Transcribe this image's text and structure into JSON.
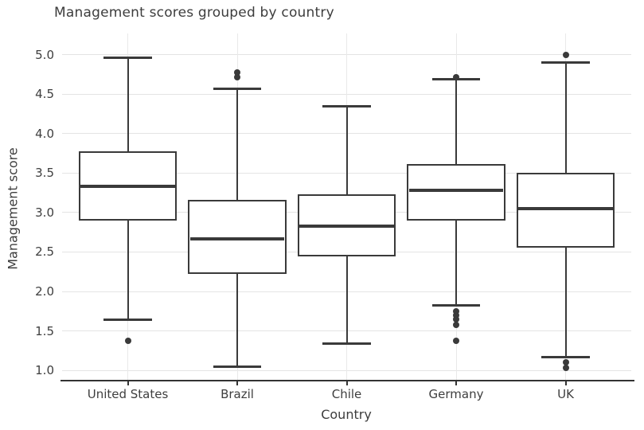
{
  "chart_data": {
    "type": "box",
    "title": "Management scores grouped by country",
    "xlabel": "Country",
    "ylabel": "Management score",
    "categories": [
      "United States",
      "Brazil",
      "Chile",
      "Germany",
      "UK"
    ],
    "yticks": [
      1.0,
      1.5,
      2.0,
      2.5,
      3.0,
      3.5,
      4.0,
      4.5,
      5.0
    ],
    "ylim": [
      0.87,
      5.27
    ],
    "grid": true,
    "legend": "none",
    "series": [
      {
        "label": "United States",
        "whisker_low": 1.64,
        "q1": 2.9,
        "median": 3.33,
        "q3": 3.78,
        "whisker_high": 4.96,
        "outliers": [
          1.37
        ]
      },
      {
        "label": "Brazil",
        "whisker_low": 1.05,
        "q1": 2.22,
        "median": 2.67,
        "q3": 3.16,
        "whisker_high": 4.57,
        "outliers": [
          4.71,
          4.78
        ]
      },
      {
        "label": "Chile",
        "whisker_low": 1.34,
        "q1": 2.44,
        "median": 2.83,
        "q3": 3.23,
        "whisker_high": 4.35,
        "outliers": []
      },
      {
        "label": "Germany",
        "whisker_low": 1.82,
        "q1": 2.9,
        "median": 3.28,
        "q3": 3.61,
        "whisker_high": 4.69,
        "outliers": [
          4.72,
          1.75,
          1.7,
          1.65,
          1.58,
          1.37
        ]
      },
      {
        "label": "UK",
        "whisker_low": 1.17,
        "q1": 2.56,
        "median": 3.05,
        "q3": 3.5,
        "whisker_high": 4.9,
        "outliers": [
          5.0,
          1.1,
          1.03
        ]
      }
    ],
    "colors": {
      "box_border": "#3a3a3a",
      "box_fill": "#ffffff",
      "median": "#3a3a3a",
      "outlier": "#3a3a3a",
      "gridline_h": "#e4e4e4",
      "gridline_v": "#e9e9e9",
      "axis_line": "#333333",
      "text": "#3e3e3e"
    }
  }
}
